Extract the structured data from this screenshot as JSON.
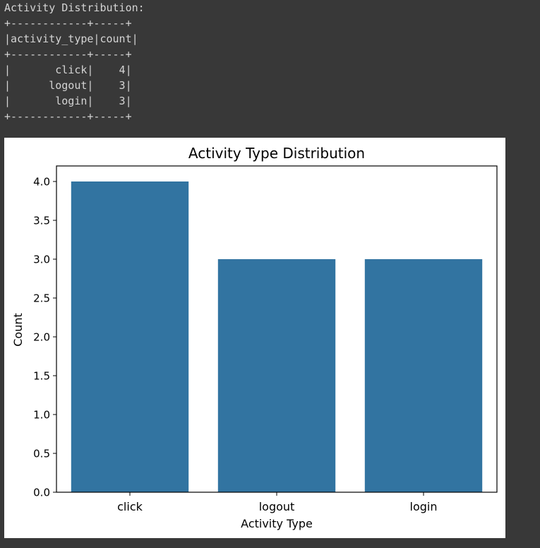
{
  "console": {
    "lines": [
      "Activity Distribution:",
      "+------------+-----+",
      "|activity_type|count|",
      "+------------+-----+",
      "|       click|    4|",
      "|      logout|    3|",
      "|       login|    3|",
      "+------------+-----+"
    ]
  },
  "chart_data": {
    "type": "bar",
    "title": "Activity Type Distribution",
    "xlabel": "Activity Type",
    "ylabel": "Count",
    "categories": [
      "click",
      "logout",
      "login"
    ],
    "values": [
      4,
      3,
      3
    ],
    "ylim": [
      0,
      4.2
    ],
    "yticks": [
      "0.0",
      "0.5",
      "1.0",
      "1.5",
      "2.0",
      "2.5",
      "3.0",
      "3.5",
      "4.0"
    ],
    "bar_color": "#3274a1",
    "grid": false,
    "legend": "none"
  }
}
